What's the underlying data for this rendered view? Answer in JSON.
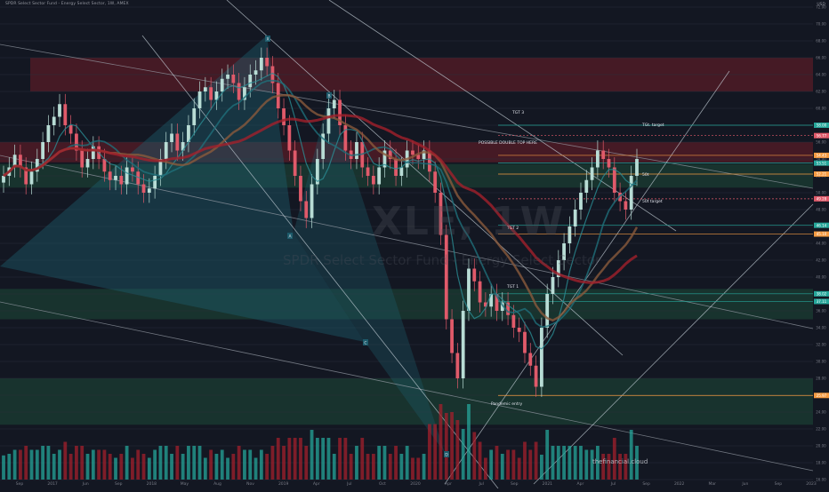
{
  "header": {
    "title": "SPDR Select Sector Fund - Energy Select Sector, 1W, AMEX",
    "currency": "USD"
  },
  "watermark": {
    "symbol": "XLE, 1W",
    "name": "SPDR Select Sector Fund - Energy Select Sector"
  },
  "credit": "thefinancial.cloud",
  "colors": {
    "background": "#131722",
    "up": "#b8dcd5",
    "down": "#e05a6a",
    "accent_red": "#a3202c",
    "accent_green": "#1e4a38",
    "accent_teal": "#26a69a",
    "orange": "#f59b42"
  },
  "chart_data": {
    "type": "candlestick",
    "title": "SPDR Select Sector Fund - Energy Select Sector, 1W, AMEX",
    "y_unit": "USD",
    "ylim": [
      16,
      72
    ],
    "x_ticks": [
      "Sep",
      "2017",
      "Jun",
      "Sep",
      "2018",
      "May",
      "Aug",
      "Nov",
      "2019",
      "Apr",
      "Jul",
      "Oct",
      "2020",
      "Apr",
      "Jul",
      "Sep",
      "2021",
      "Apr",
      "Jul",
      "Sep",
      "2022",
      "Mar",
      "Jun",
      "Sep",
      "2023"
    ],
    "y_ticks": [
      16,
      18,
      20,
      22,
      24,
      26,
      28,
      30,
      32,
      34,
      36,
      38,
      40,
      42,
      44,
      46,
      48,
      50,
      52,
      54,
      56,
      58,
      60,
      62,
      64,
      66,
      68,
      70,
      72
    ],
    "price_labels": [
      {
        "text": "58.00",
        "value": 58.0,
        "color": "#26a69a"
      },
      {
        "text": "56.77",
        "value": 56.77,
        "color": "#e05a6a"
      },
      {
        "text": "54.43",
        "value": 54.43,
        "color": "#f59b42"
      },
      {
        "text": "53.51",
        "value": 53.51,
        "color": "#26a69a"
      },
      {
        "text": "52.21",
        "value": 52.21,
        "color": "#f59b42"
      },
      {
        "text": "49.28",
        "value": 49.28,
        "color": "#e05a6a"
      },
      {
        "text": "46.14",
        "value": 46.14,
        "color": "#26a69a"
      },
      {
        "text": "45.10",
        "value": 45.1,
        "color": "#f59b42"
      },
      {
        "text": "38.02",
        "value": 38.02,
        "color": "#26a69a"
      },
      {
        "text": "37.11",
        "value": 37.11,
        "color": "#26a69a"
      },
      {
        "text": "25.97",
        "value": 25.97,
        "color": "#f59b42"
      }
    ],
    "annotations": [
      {
        "text": "POSSIBLE DOUBLE TOP HERE",
        "x_tick": "2020"
      },
      {
        "text": "TGT 3",
        "value": 58.0
      },
      {
        "text": "TGT 2",
        "value": 46.14
      },
      {
        "text": "TGT 1",
        "value": 38.02
      },
      {
        "text": "Pandemic entry",
        "value": 25.97
      },
      {
        "text": "TGt. target",
        "value": 57.2
      },
      {
        "text": "50t",
        "value": 53.8
      },
      {
        "text": "50t target",
        "value": 49.0
      }
    ],
    "wedge_labels": [
      "X",
      "A",
      "B",
      "C",
      "D"
    ],
    "series": [
      {
        "name": "price",
        "type": "candles",
        "close": [
          52,
          53,
          54.5,
          53,
          51,
          52.5,
          54,
          56,
          58,
          59,
          60.5,
          58,
          57,
          55,
          53,
          54,
          55.5,
          54,
          52.5,
          51.5,
          52,
          51,
          53,
          52.5,
          51,
          50,
          50.5,
          52,
          54,
          56,
          57,
          55,
          56,
          58,
          60,
          62,
          62.5,
          61,
          62,
          63.5,
          64,
          63,
          61,
          62.5,
          64,
          64.5,
          66,
          65,
          63,
          60,
          58,
          55,
          52,
          49,
          47,
          51,
          54,
          57,
          60,
          61,
          58,
          55,
          54,
          56,
          53,
          52,
          51,
          53,
          55,
          54,
          52,
          53,
          55,
          54.5,
          54,
          55,
          52.5,
          50,
          45,
          35,
          31,
          28,
          36,
          41,
          39.5,
          37,
          36.5,
          38,
          36,
          37,
          35.5,
          34,
          33.5,
          31,
          29.5,
          27,
          34,
          38,
          40,
          42,
          44,
          46,
          48,
          50,
          51.5,
          53,
          55,
          54,
          53,
          50,
          49,
          48,
          52,
          54
        ],
        "vol_unit": "relative"
      },
      {
        "name": "volume",
        "type": "bars"
      }
    ]
  }
}
